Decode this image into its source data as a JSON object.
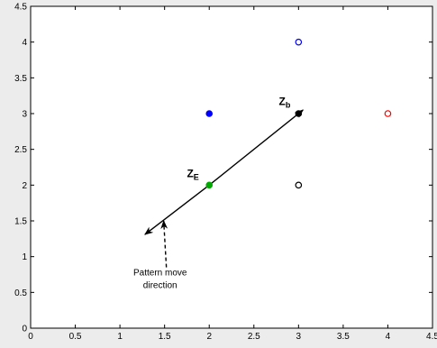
{
  "chart_data": {
    "type": "scatter",
    "title": "",
    "xlabel": "",
    "ylabel": "",
    "xlim": [
      0,
      4.5
    ],
    "ylim": [
      0,
      4.5
    ],
    "grid": false,
    "xticks": [
      0,
      0.5,
      1,
      1.5,
      2,
      2.5,
      3,
      3.5,
      4,
      4.5
    ],
    "xtick_labels": [
      "0",
      "0.5",
      "1",
      "1.5",
      "2",
      "2.5",
      "3",
      "3.5",
      "4",
      "4.5"
    ],
    "yticks": [
      0,
      0.5,
      1,
      1.5,
      2,
      2.5,
      3,
      3.5,
      4,
      4.5
    ],
    "ytick_labels": [
      "0",
      "0.5",
      "1",
      "1.5",
      "2",
      "2.5",
      "3",
      "3.5",
      "4",
      "4.5"
    ],
    "points": [
      {
        "x": 3,
        "y": 4,
        "color": "#0000ff",
        "filled": false
      },
      {
        "x": 2,
        "y": 3,
        "color": "#0000ff",
        "filled": true
      },
      {
        "x": 4,
        "y": 3,
        "color": "#ff0000",
        "filled": false
      },
      {
        "x": 3,
        "y": 3,
        "color": "#000000",
        "filled": true
      },
      {
        "x": 2,
        "y": 2,
        "color": "#00aa00",
        "filled": true
      },
      {
        "x": 3,
        "y": 2,
        "color": "#000000",
        "filled": false
      }
    ],
    "arrows": [
      {
        "x1": 2,
        "y1": 2,
        "x2": 3.05,
        "y2": 3.05,
        "style": "solid",
        "color": "#000000"
      },
      {
        "x1": 2,
        "y1": 2,
        "x2": 1.28,
        "y2": 1.31,
        "style": "solid",
        "color": "#000000"
      },
      {
        "x1": 1.52,
        "y1": 0.85,
        "x2": 1.49,
        "y2": 1.5,
        "style": "dashed",
        "color": "#000000"
      }
    ],
    "annotations": [
      {
        "id": "zb",
        "main": "Z",
        "sub": "b",
        "x": 2.78,
        "y": 3.12
      },
      {
        "id": "ze",
        "main": "Z",
        "sub": "E",
        "x": 1.75,
        "y": 2.11
      },
      {
        "id": "pattern1",
        "text": "Pattern move",
        "x": 1.45,
        "y": 0.74
      },
      {
        "id": "pattern2",
        "text": "direction",
        "x": 1.45,
        "y": 0.56
      }
    ]
  }
}
